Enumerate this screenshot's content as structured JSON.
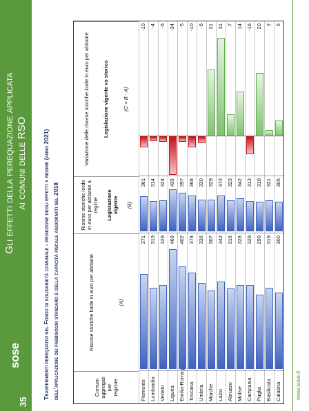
{
  "header": {
    "page_number": "35",
    "logo": "sose",
    "title_lines": [
      "Gli effetti della perequazione applicata",
      "ai comuni delle RSO"
    ]
  },
  "subtitle_lines": [
    "Trasferimenti perequativi nel Fondo di solidarietà comunale - proiezione degli effetti a regime (anno 2021)",
    "dell'applicazione dei fabbisogni standard e della capacità fiscale aggiornati nel 2018"
  ],
  "table": {
    "headers": [
      [
        "Comuni aggregati per regione"
      ],
      [
        "Risorse storiche lorde in euro per abitante",
        "(A)"
      ],
      [
        "Risorse storiche lorde in euro per abitante a regime",
        "Legislazione vigente",
        "(B)"
      ],
      [
        "Variazione delle risorse storiche lorde in euro per abitante",
        "Legislazione vigente vs storico",
        "(C = B - A)"
      ]
    ],
    "rows": [
      [
        "Piemonte",
        371,
        361,
        -10
      ],
      [
        "Lombardia",
        319,
        314,
        -4
      ],
      [
        "Veneto",
        329,
        324,
        -5
      ],
      [
        "Liguria",
        469,
        435,
        -34
      ],
      [
        "Emilia-Romagna",
        402,
        397,
        -5
      ],
      [
        "Toscana",
        378,
        368,
        -10
      ],
      [
        "Umbria",
        336,
        330,
        -6
      ],
      [
        "Marche",
        307,
        329,
        21
      ],
      [
        "Lazio",
        342,
        373,
        31
      ],
      [
        "Abruzzo",
        316,
        323,
        7
      ],
      [
        "Molise",
        328,
        342,
        14
      ],
      [
        "Campania",
        329,
        313,
        -16
      ],
      [
        "Puglia",
        290,
        310,
        20
      ],
      [
        "Basilicata",
        319,
        321,
        2
      ],
      [
        "Calabria",
        300,
        305,
        5
      ]
    ]
  },
  "footer": "www.sose.it"
}
